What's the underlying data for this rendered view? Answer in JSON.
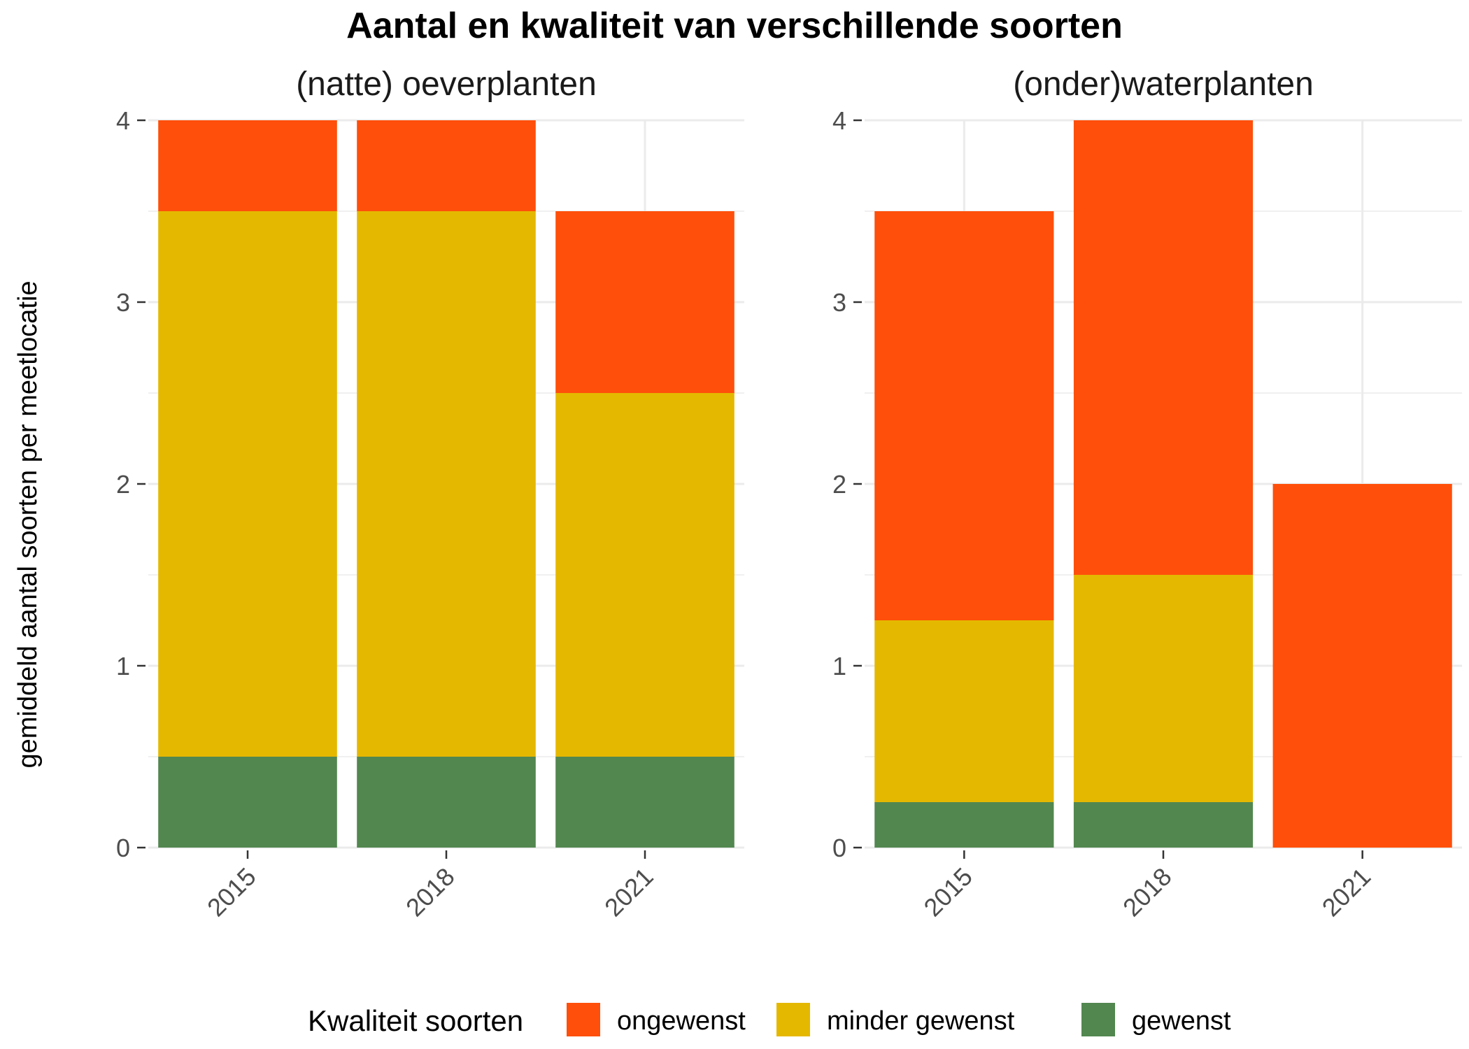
{
  "chart_data": {
    "type": "bar",
    "stacked": true,
    "title": "Aantal en kwaliteit van verschillende soorten",
    "ylabel": "gemiddeld aantal soorten per meetlocatie",
    "xlabel": "",
    "ylim": [
      0,
      4
    ],
    "y_ticks": [
      "0",
      "1",
      "2",
      "3",
      "4"
    ],
    "grid": true,
    "legend": {
      "title": "Kwaliteit soorten",
      "position": "bottom",
      "items": [
        {
          "label": "ongewenst",
          "color": "#FF4F0A"
        },
        {
          "label": "minder gewenst",
          "color": "#E5B800"
        },
        {
          "label": "gewenst",
          "color": "#52874F"
        }
      ]
    },
    "panels": [
      {
        "title": "(natte) oeverplanten",
        "categories": [
          "2015",
          "2018",
          "2021"
        ],
        "series": [
          {
            "name": "gewenst",
            "color": "#52874F",
            "values": [
              0.5,
              0.5,
              0.5
            ]
          },
          {
            "name": "minder gewenst",
            "color": "#E5B800",
            "values": [
              3.0,
              3.0,
              2.0
            ]
          },
          {
            "name": "ongewenst",
            "color": "#FF4F0A",
            "values": [
              0.5,
              0.5,
              1.0
            ]
          }
        ]
      },
      {
        "title": "(onder)waterplanten",
        "categories": [
          "2015",
          "2018",
          "2021"
        ],
        "series": [
          {
            "name": "gewenst",
            "color": "#52874F",
            "values": [
              0.25,
              0.25,
              0
            ]
          },
          {
            "name": "minder gewenst",
            "color": "#E5B800",
            "values": [
              1.0,
              1.25,
              0
            ]
          },
          {
            "name": "ongewenst",
            "color": "#FF4F0A",
            "values": [
              2.25,
              2.5,
              2.0
            ]
          }
        ]
      }
    ]
  }
}
